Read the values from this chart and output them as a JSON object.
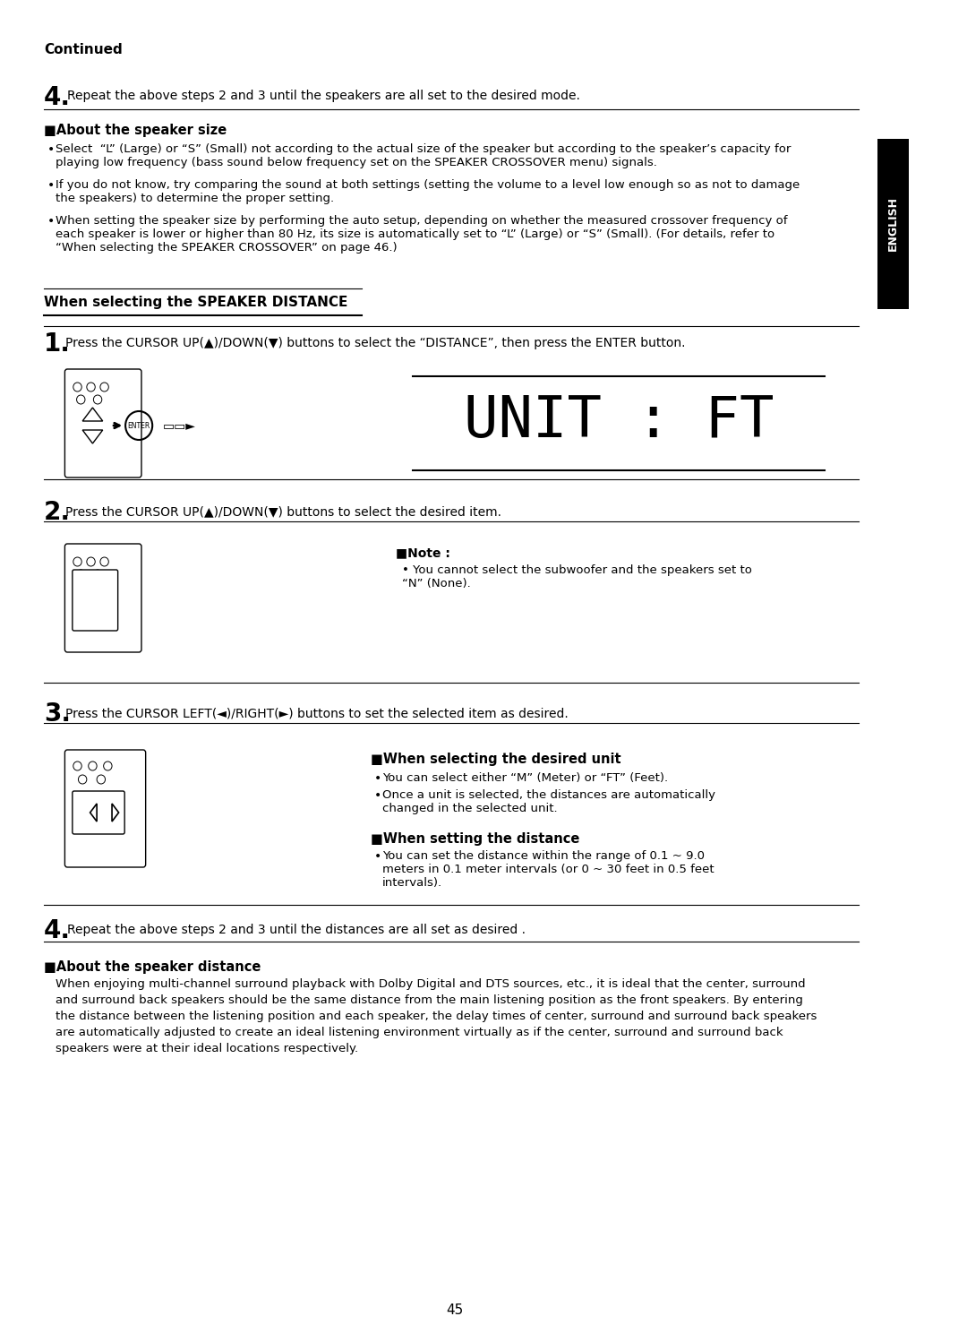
{
  "bg_color": "#ffffff",
  "text_color": "#000000",
  "page_number": "45",
  "continued_text": "Continued",
  "step4_top": {
    "number": "4.",
    "text": "Repeat the above steps 2 and 3 until the speakers are all set to the desired mode."
  },
  "section_speaker_size": {
    "title": "■About the speaker size",
    "bullets": [
      "Select  “L” (Large) or “S” (Small) not according to the actual size of the speaker but according to the speaker’s capacity for\nplaying low frequency (bass sound below frequency set on the SPEAKER CROSSOVER menu) signals.",
      "If you do not know, try comparing the sound at both settings (setting the volume to a level low enough so as not to damage\nthe speakers) to determine the proper setting.",
      "When setting the speaker size by performing the auto setup, depending on whether the measured crossover frequency of\neach speaker is lower or higher than 80 Hz, its size is automatically set to “L” (Large) or “S” (Small). (For details, refer to\n“When selecting the SPEAKER CROSSOVER” on page 46.)"
    ]
  },
  "section_distance": {
    "title": "When selecting the SPEAKER DISTANCE",
    "step1": {
      "number": "1.",
      "text": "Press the CURSOR UP(▲)/DOWN(▼) buttons to select the “DISTANCE”, then press the ENTER button."
    },
    "display_text": "UNIT : FT",
    "step2": {
      "number": "2.",
      "text": "Press the CURSOR UP(▲)/DOWN(▼) buttons to select the desired item."
    },
    "note_title": "■Note :",
    "note_text": "You cannot select the subwoofer and the speakers set to\n“N” (None).",
    "step3": {
      "number": "3.",
      "text": "Press the CURSOR LEFT(◄)/RIGHT(►) buttons to set the selected item as desired."
    },
    "when_unit_title": "■When selecting the desired unit",
    "when_unit_bullets": [
      "You can select either “M” (Meter) or “FT” (Feet).",
      "Once a unit is selected, the distances are automatically\nchanged in the selected unit."
    ],
    "when_distance_title": "■When setting the distance",
    "when_distance_bullets": [
      "You can set the distance within the range of 0.1 ~ 9.0\nmeters in 0.1 meter intervals (or 0 ~ 30 feet in 0.5 feet\nintervals)."
    ],
    "step4": {
      "number": "4.",
      "text": "Repeat the above steps 2 and 3 until the distances are all set as desired ."
    }
  },
  "section_speaker_distance_about": {
    "title": "■About the speaker distance",
    "text": "When enjoying multi-channel surround playback with Dolby Digital and DTS sources, etc., it is ideal that the center, surround\nand surround back speakers should be the same distance from the main listening position as the front speakers. By entering\nthe distance between the listening position and each speaker, the delay times of center, surround and surround back speakers\nare automatically adjusted to create an ideal listening environment virtually as if the center, surround and surround back\nspeakers were at their ideal locations respectively."
  }
}
